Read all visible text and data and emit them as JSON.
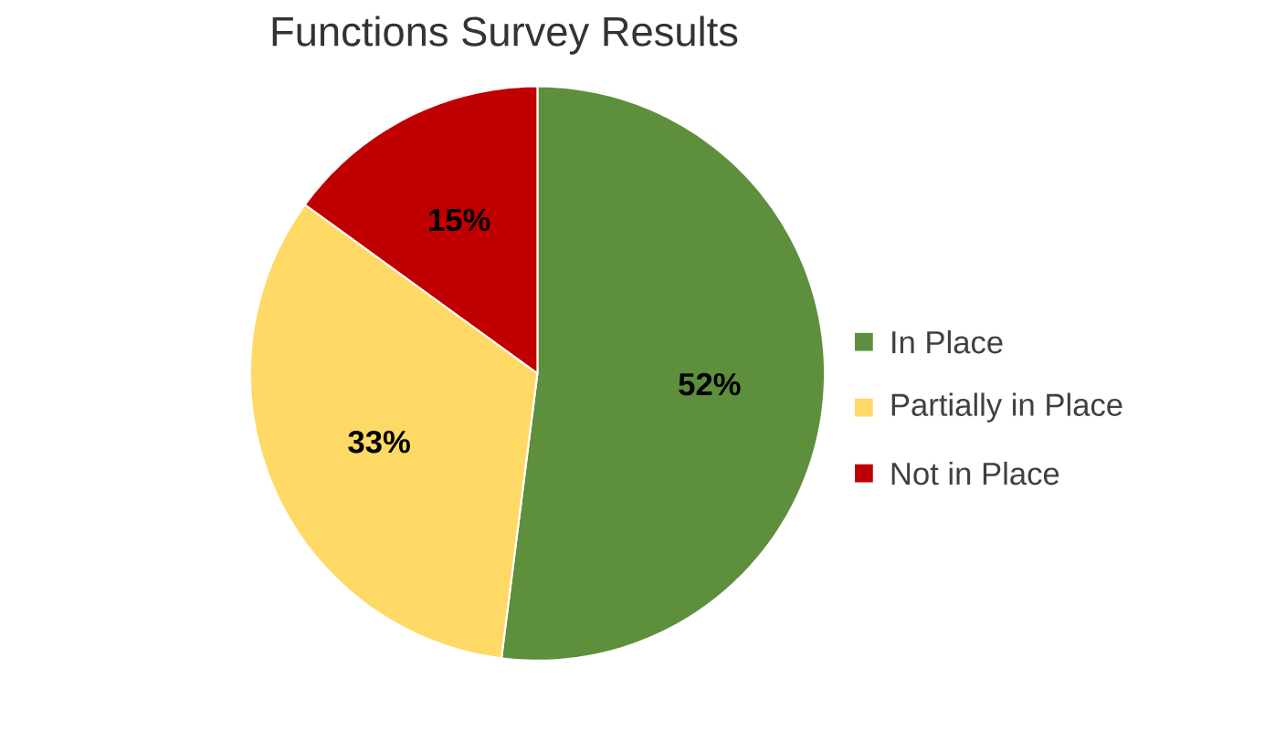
{
  "chart_data": {
    "type": "pie",
    "title": "Functions Survey Results",
    "categories": [
      "In Place",
      "Partially in Place",
      "Not in Place"
    ],
    "values": [
      52,
      33,
      15
    ],
    "colors": [
      "#5e8f3c",
      "#ffd966",
      "#c00000"
    ],
    "value_labels": [
      "52%",
      "33%",
      "15%"
    ],
    "legend": "right"
  }
}
